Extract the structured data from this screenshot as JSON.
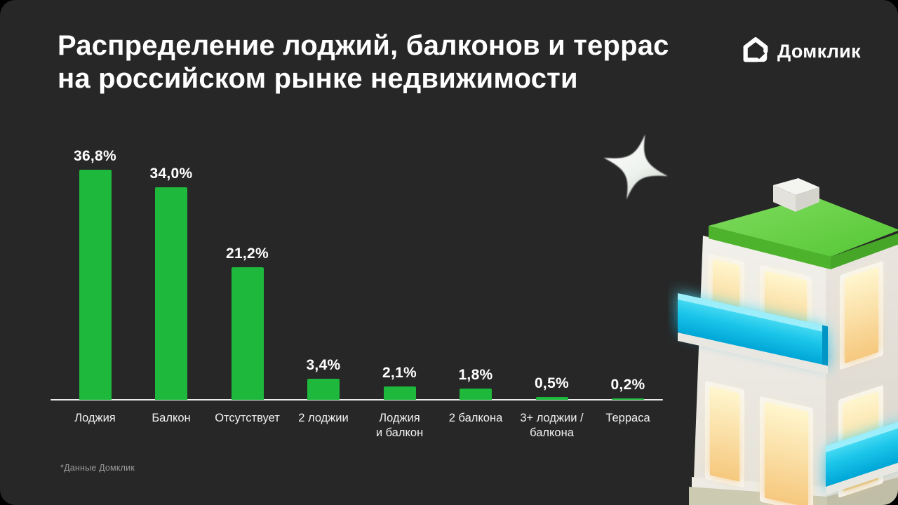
{
  "slide": {
    "title_line1": "Распределение лоджий, балконов и террас",
    "title_line2": "на российском рынке недвижимости",
    "footnote": "*Данные Домклик",
    "background_color": "#272727"
  },
  "logo": {
    "text": "Домклик",
    "icon": "domclick-house-icon",
    "color": "#ffffff"
  },
  "decorations": {
    "sparkle": "four-point-star",
    "illustration": "3d-building-with-green-roof-glowing-windows-and-cyan-balconies"
  },
  "chart_data": {
    "type": "bar",
    "title": "Распределение лоджий, балконов и террас на российском рынке недвижимости",
    "categories": [
      "Лоджия",
      "Балкон",
      "Отсутствует",
      "2 лоджии",
      "Лоджия\nи балкон",
      "2 балкона",
      "3+ лоджии /\nбалкона",
      "Терраса"
    ],
    "values": [
      36.8,
      34.0,
      21.2,
      3.4,
      2.1,
      1.8,
      0.5,
      0.2
    ],
    "value_labels": [
      "36,8%",
      "34,0%",
      "21,2%",
      "3,4%",
      "2,1%",
      "1,8%",
      "0,5%",
      "0,2%"
    ],
    "unit": "%",
    "xlabel": "",
    "ylabel": "",
    "ylim": [
      0,
      40
    ],
    "grid": false,
    "legend": null,
    "bar_color": "#1eb93c",
    "axis_color": "#ebebeb",
    "label_color": "#ffffff",
    "source_note": "*Данные Домклик"
  }
}
